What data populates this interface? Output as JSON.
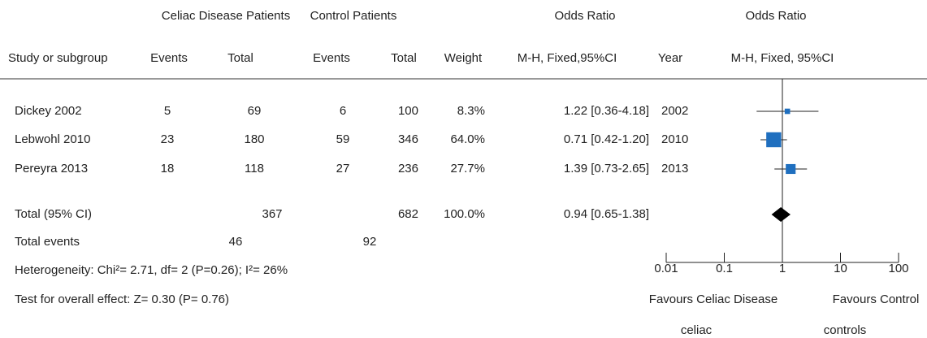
{
  "chart_data": {
    "type": "forest",
    "group_headers": [
      "Celiac Disease Patients",
      "Control Patients",
      "Odds Ratio",
      "Odds Ratio"
    ],
    "column_headers": [
      "Study or subgroup",
      "Events",
      "Total",
      "Events",
      "Total",
      "Weight",
      "M-H, Fixed,95%CI",
      "Year",
      "M-H, Fixed, 95%CI"
    ],
    "studies": [
      {
        "name": "Dickey 2002",
        "events1": 5,
        "total1": 69,
        "events2": 6,
        "total2": 100,
        "weight": 8.3,
        "weight_label": "8.3%",
        "or": 1.22,
        "lo": 0.36,
        "hi": 4.18,
        "ci_label": "1.22 [0.36-4.18]",
        "year": 2002
      },
      {
        "name": "Lebwohl 2010",
        "events1": 23,
        "total1": 180,
        "events2": 59,
        "total2": 346,
        "weight": 64.0,
        "weight_label": "64.0%",
        "or": 0.71,
        "lo": 0.42,
        "hi": 1.2,
        "ci_label": "0.71 [0.42-1.20]",
        "year": 2010
      },
      {
        "name": "Pereyra 2013",
        "events1": 18,
        "total1": 118,
        "events2": 27,
        "total2": 236,
        "weight": 27.7,
        "weight_label": "27.7%",
        "or": 1.39,
        "lo": 0.73,
        "hi": 2.65,
        "ci_label": "1.39 [0.73-2.65]",
        "year": 2013
      }
    ],
    "total": {
      "name": "Total (95% CI)",
      "total1": 367,
      "total2": 682,
      "weight": 100.0,
      "weight_label": "100.0%",
      "or": 0.94,
      "lo": 0.65,
      "hi": 1.38,
      "ci_label": "0.94 [0.65-1.38]"
    },
    "total_events": {
      "name": "Total events",
      "events1": 46,
      "events2": 92
    },
    "heterogeneity": "Heterogeneity: Chi²= 2.71, df= 2 (P=0.26); I²= 26%",
    "overall_effect": "Test for overall effect: Z= 0.30 (P= 0.76)",
    "xlim": [
      0.01,
      100
    ],
    "xticks": [
      0.01,
      0.1,
      1,
      10,
      100
    ],
    "log_x": true,
    "favours_left": [
      "Favours Celiac Disease",
      "celiac"
    ],
    "favours_right": [
      "Favours Control",
      "controls"
    ],
    "color": "#1f6fbf",
    "total_color": "#000000"
  }
}
